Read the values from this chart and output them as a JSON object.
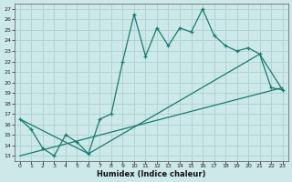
{
  "xlabel": "Humidex (Indice chaleur)",
  "background_color": "#cce8e8",
  "grid_color": "#b0d4d4",
  "line_color": "#1a7a6e",
  "xlim": [
    -0.5,
    23.5
  ],
  "ylim": [
    12.5,
    27.5
  ],
  "yticks": [
    13,
    14,
    15,
    16,
    17,
    18,
    19,
    20,
    21,
    22,
    23,
    24,
    25,
    26,
    27
  ],
  "xticks": [
    0,
    1,
    2,
    3,
    4,
    5,
    6,
    7,
    8,
    9,
    10,
    11,
    12,
    13,
    14,
    15,
    16,
    17,
    18,
    19,
    20,
    21,
    22,
    23
  ],
  "line1_x": [
    0,
    1,
    2,
    3,
    4,
    5,
    6,
    7,
    8,
    9,
    10,
    11,
    12,
    13,
    14,
    15,
    16,
    17,
    18,
    19,
    20,
    21,
    22,
    23
  ],
  "line1_y": [
    16.5,
    15.5,
    13.7,
    13.0,
    15.0,
    14.3,
    13.2,
    16.5,
    17.0,
    22.0,
    26.5,
    22.5,
    25.2,
    23.5,
    25.2,
    24.8,
    27.0,
    24.5,
    23.5,
    23.0,
    23.3,
    22.7,
    19.5,
    19.3
  ],
  "line2_x": [
    0,
    6,
    21,
    23
  ],
  "line2_y": [
    16.5,
    13.2,
    22.7,
    19.3
  ],
  "line3_x": [
    0,
    23
  ],
  "line3_y": [
    13.0,
    19.5
  ]
}
